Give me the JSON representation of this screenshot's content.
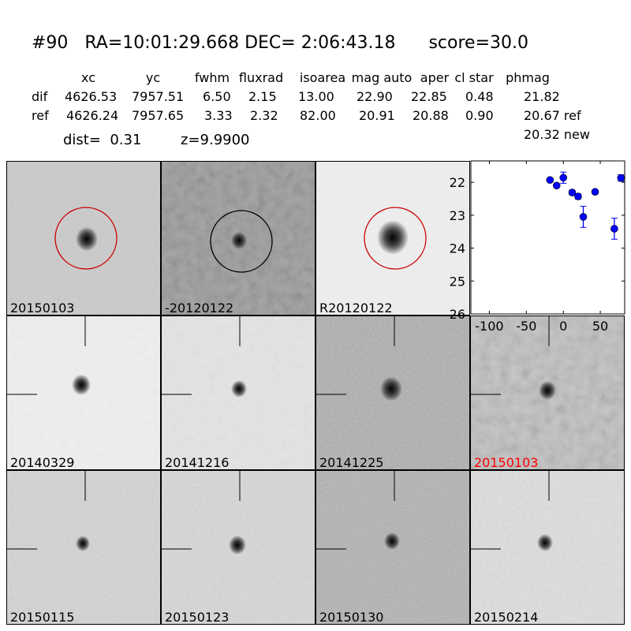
{
  "title": "#90   RA=10:01:29.668 DEC= 2:06:43.18      score=30.0",
  "table": {
    "headers": [
      "xc",
      "yc",
      "fwhm",
      "fluxrad",
      "isoarea",
      "mag auto",
      "aper",
      "cl star",
      "phmag"
    ],
    "rows": [
      {
        "label": "dif",
        "values": [
          "4626.53",
          "7957.51",
          "6.50",
          "2.15",
          "13.00",
          "22.90",
          "22.85",
          "0.48",
          "21.82"
        ]
      },
      {
        "label": "ref",
        "values": [
          "4626.24",
          "7957.65",
          "3.33",
          "2.32",
          "82.00",
          "20.91",
          "20.88",
          "0.90",
          "20.67 ref"
        ]
      }
    ],
    "extra_phmag": "20.32 new",
    "dist": "dist=  0.31",
    "z": "z=9.9900"
  },
  "stamps": [
    {
      "label": "20150103",
      "circle": "#cc0000",
      "label_color": "#000000"
    },
    {
      "label": "-20120122",
      "circle": "#000000",
      "label_color": "#000000"
    },
    {
      "label": "R20120122",
      "circle": "#cc0000",
      "label_color": "#000000"
    },
    {
      "label": "20140329",
      "label_color": "#000000"
    },
    {
      "label": "20141216",
      "label_color": "#000000"
    },
    {
      "label": "20141225",
      "label_color": "#000000"
    },
    {
      "label": "20150103",
      "label_color": "#ff0000"
    },
    {
      "label": "20150115",
      "label_color": "#000000"
    },
    {
      "label": "20150123",
      "label_color": "#000000"
    },
    {
      "label": "20150130",
      "label_color": "#000000"
    },
    {
      "label": "20150214",
      "label_color": "#000000"
    }
  ],
  "chart_data": {
    "type": "scatter",
    "title": "",
    "xlabel": "",
    "ylabel": "",
    "xlim": [
      -125,
      83
    ],
    "ylim": [
      26,
      21.35
    ],
    "y_inverted": true,
    "xticks": [
      -100,
      -50,
      0,
      50
    ],
    "yticks": [
      22,
      23,
      24,
      25,
      26
    ],
    "grid": false,
    "color": "#0000ff",
    "points": [
      {
        "x": -18,
        "y": 21.93,
        "err": 0.04
      },
      {
        "x": -9,
        "y": 22.1,
        "err": 0.04
      },
      {
        "x": 0,
        "y": 21.86,
        "err": 0.17
      },
      {
        "x": 12,
        "y": 22.31,
        "err": 0.07
      },
      {
        "x": 20,
        "y": 22.43,
        "err": 0.08
      },
      {
        "x": 27,
        "y": 23.05,
        "err": 0.32
      },
      {
        "x": 43,
        "y": 22.29,
        "err": 0.06
      },
      {
        "x": 69,
        "y": 23.41,
        "err": 0.32
      },
      {
        "x": 78,
        "y": 21.87,
        "err": 0.1
      }
    ]
  }
}
